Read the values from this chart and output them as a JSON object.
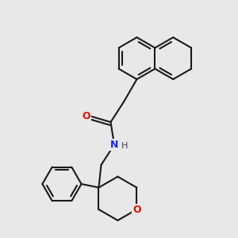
{
  "bg_color": "#e8e8e8",
  "bond_color": "#1a1a1a",
  "bond_width": 1.5,
  "O_color": "#dd1100",
  "N_color": "#2222ee",
  "font_size": 9,
  "fig_width": 3.0,
  "fig_height": 3.0,
  "dpi": 100,
  "xlim": [
    0.0,
    1.0
  ],
  "ylim": [
    0.0,
    1.0
  ]
}
